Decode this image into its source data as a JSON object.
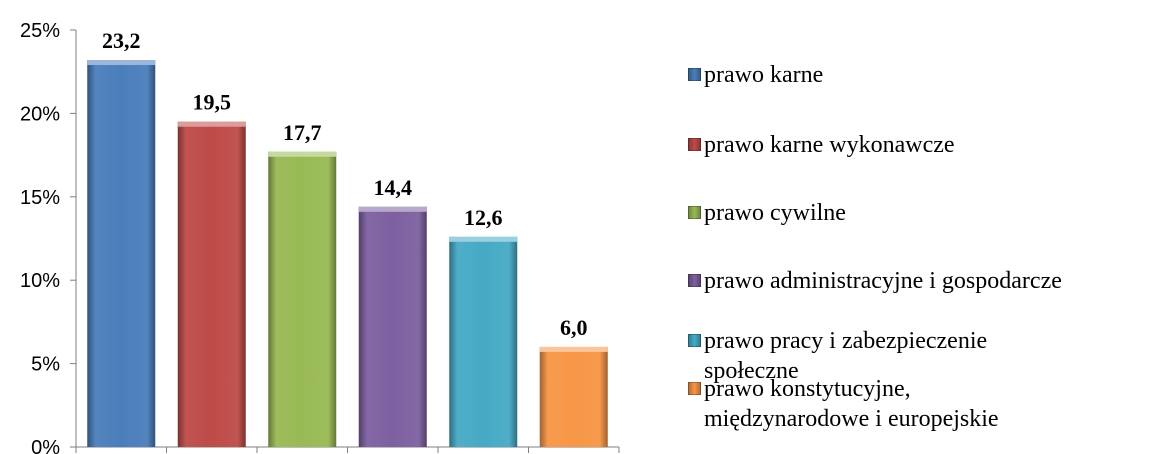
{
  "chart_data": {
    "type": "bar",
    "categories": [
      "prawo karne",
      "prawo karne wykonawcze",
      "prawo cywilne",
      "prawo administracyjne i gospodarcze",
      "prawo pracy i zabezpieczenie\nspołeczne",
      "prawo konstytucyjne,\nmiędzynarodowe i europejskie"
    ],
    "values": [
      23.2,
      19.5,
      17.7,
      14.4,
      12.6,
      6.0
    ],
    "data_labels": [
      "23,2",
      "19,5",
      "17,7",
      "14,4",
      "12,6",
      "6,0"
    ],
    "colors": [
      "#4a7ebb",
      "#be4b48",
      "#98b954",
      "#7d60a0",
      "#46aac5",
      "#f79646"
    ],
    "y_ticks": [
      "0%",
      "5%",
      "10%",
      "15%",
      "20%",
      "25%"
    ],
    "ylim": [
      0,
      25
    ],
    "legend_position": "right",
    "grid": false
  }
}
